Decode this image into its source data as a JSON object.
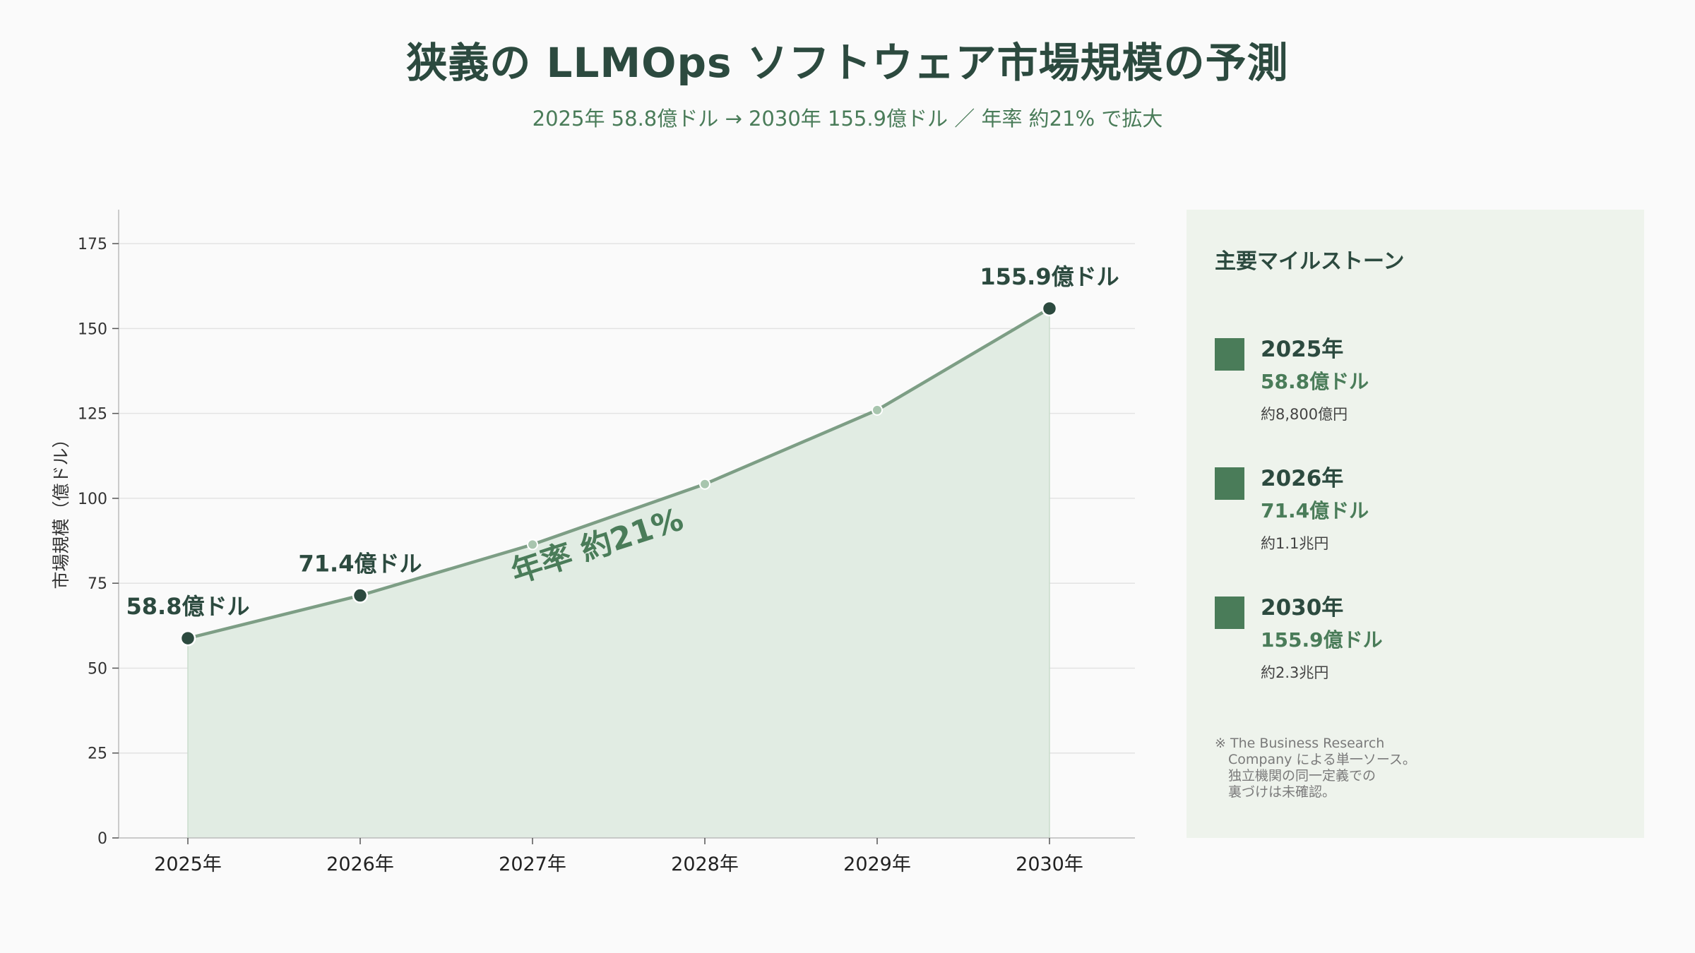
{
  "header": {
    "title": "狭義の LLMOps ソフトウェア市場規模の予測",
    "subtitle": "2025年 58.8億ドル → 2030年 155.9億ドル ／ 年率 約21% で拡大"
  },
  "chart_data": {
    "type": "area",
    "categories": [
      "2025年",
      "2026年",
      "2027年",
      "2028年",
      "2029年",
      "2030年"
    ],
    "series": [
      {
        "values": [
          58.8,
          71.4,
          86.4,
          104.2,
          126.0,
          155.9
        ]
      }
    ],
    "ylabel": "市場規模（億ドル）",
    "xlabel": "",
    "ylim": [
      0,
      185
    ],
    "yticks": [
      0,
      25,
      50,
      75,
      100,
      125,
      150,
      175
    ],
    "grid": true,
    "highlighted_points": [
      {
        "index": 0,
        "label": "58.8億ドル"
      },
      {
        "index": 1,
        "label": "71.4億ドル"
      },
      {
        "index": 5,
        "label": "155.9億ドル"
      }
    ],
    "annotation": "年率 約21%",
    "colors": {
      "line": "#7d9e85",
      "fill": "#e1ece3",
      "point_major": "#2c4a3f",
      "point_minor": "#a8c5ae",
      "accent": "#4a7c59"
    }
  },
  "panel": {
    "title": "主要マイルストーン",
    "milestones": [
      {
        "year": "2025年",
        "value": "58.8億ドル",
        "note": "約8,800億円"
      },
      {
        "year": "2026年",
        "value": "71.4億ドル",
        "note": "約1.1兆円"
      },
      {
        "year": "2030年",
        "value": "155.9億ドル",
        "note": "約2.3兆円"
      }
    ],
    "footnote": "※ The Business Research\n　Company による単一ソース。\n　独立機関の同一定義での\n　裏づけは未確認。"
  }
}
